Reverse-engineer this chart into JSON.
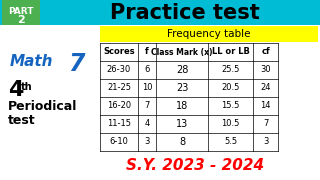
{
  "title": "Practice test",
  "subtitle": "Frequency table",
  "part_label": "PART\n2",
  "math_label": "Math  7",
  "periodical_label": "4th\nPeriodical\ntest",
  "sy_label": "S.Y. 2023 - 2024",
  "table_headers": [
    "Scores",
    "f",
    "Class Mark (x)",
    "LL or LB",
    "cf"
  ],
  "table_data": [
    [
      "26-30",
      "6",
      "28",
      "25.5",
      "30"
    ],
    [
      "21-25",
      "10",
      "23",
      "20.5",
      "24"
    ],
    [
      "16-20",
      "7",
      "18",
      "15.5",
      "14"
    ],
    [
      "11-15",
      "4",
      "13",
      "10.5",
      "7"
    ],
    [
      "6-10",
      "3",
      "8",
      "5.5",
      "3"
    ]
  ],
  "bg_top": "#00bcd4",
  "bg_part": "#4caf50",
  "bg_white": "#ffffff",
  "bg_yellow": "#ffff00",
  "color_math": "#1565c0",
  "color_7": "#1565c0",
  "color_4th": "#000000",
  "color_periodical": "#000000",
  "color_sy": "#ff0000",
  "color_title": "#000000",
  "color_table_header_bg": "#ffffff",
  "color_table_row_bg": "#ffffff"
}
